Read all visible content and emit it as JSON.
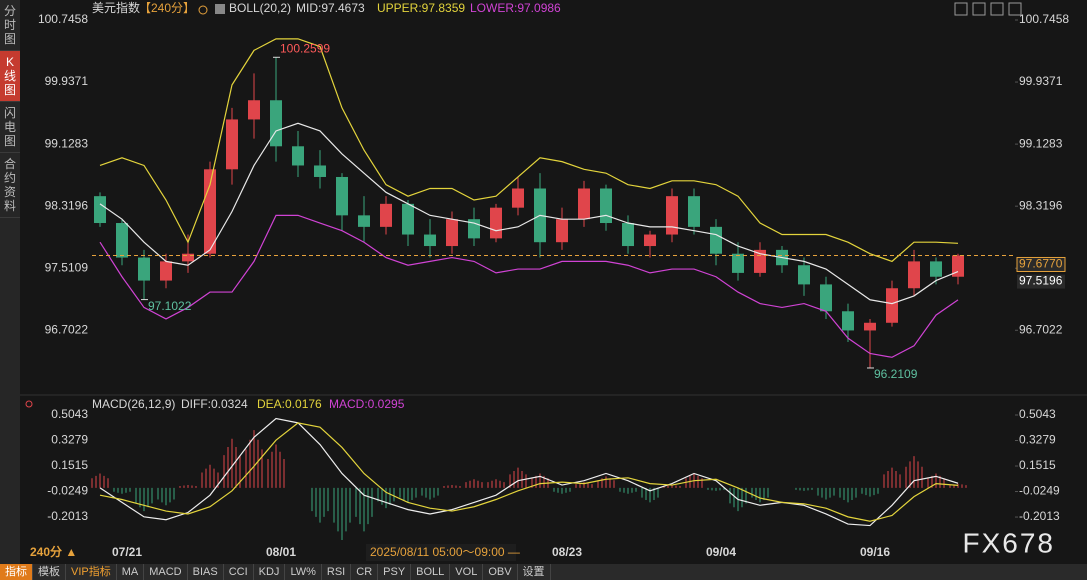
{
  "sidebar": [
    "分时图",
    "K线图",
    "闪电图",
    "合约资料"
  ],
  "header": {
    "symbol": "美元指数",
    "period": "【240分】",
    "indicator": "BOLL(20,2)",
    "mid": "MID:97.4673",
    "upper": "UPPER:97.8359",
    "lower": "LOWER:97.0986"
  },
  "macd_header": {
    "indicator": "MACD(26,12,9)",
    "diff": "DIFF:0.0324",
    "dea": "DEA:0.0176",
    "macd": "MACD:0.0295"
  },
  "period_label": "240分 ▲",
  "cursor_time": "2025/08/11 05:00～09:00 —",
  "watermark": "FX678",
  "toolbar": [
    "指标",
    "模板",
    "VIP指标",
    "MA",
    "MACD",
    "BIAS",
    "CCI",
    "KDJ",
    "LW%",
    "RSI",
    "CR",
    "PSY",
    "BOLL",
    "VOL",
    "OBV",
    "设置"
  ],
  "chart_data": [
    {
      "type": "candlestick",
      "up_color": "#e0454b",
      "down_color": "#3aa57c",
      "categories": [
        null,
        "07/21",
        null,
        null,
        null,
        null,
        null,
        null,
        "08/01",
        null,
        null,
        null,
        null,
        null,
        null,
        null,
        null,
        null,
        null,
        null,
        null,
        "08/23",
        null,
        null,
        null,
        null,
        null,
        null,
        "09/04",
        null,
        null,
        null,
        null,
        null,
        null,
        "09/16",
        null,
        null,
        null,
        null
      ],
      "open": [
        98.45,
        98.1,
        97.65,
        97.35,
        97.6,
        97.7,
        98.8,
        99.45,
        99.7,
        99.1,
        98.85,
        98.7,
        98.2,
        98.05,
        98.35,
        97.95,
        97.8,
        98.15,
        97.9,
        98.3,
        98.55,
        97.85,
        98.15,
        98.55,
        98.1,
        97.8,
        97.95,
        98.45,
        98.05,
        97.7,
        97.45,
        97.75,
        97.55,
        97.3,
        96.95,
        96.7,
        96.8,
        97.25,
        97.6,
        97.4
      ],
      "high": [
        98.5,
        98.15,
        97.75,
        97.7,
        97.95,
        98.9,
        99.6,
        100.05,
        100.2599,
        99.3,
        99.05,
        98.75,
        98.45,
        98.45,
        98.4,
        98.15,
        98.25,
        98.3,
        98.35,
        98.7,
        98.75,
        98.3,
        98.65,
        98.6,
        98.2,
        98.0,
        98.55,
        98.55,
        98.15,
        97.85,
        97.85,
        97.8,
        97.65,
        97.4,
        97.05,
        96.85,
        97.35,
        97.75,
        97.65,
        97.7
      ],
      "low": [
        98.05,
        97.55,
        97.1022,
        97.25,
        97.45,
        97.65,
        98.6,
        99.2,
        98.9,
        98.7,
        98.55,
        98.0,
        97.85,
        97.95,
        97.8,
        97.65,
        97.7,
        97.8,
        97.85,
        98.2,
        97.65,
        97.75,
        98.05,
        98.0,
        97.7,
        97.65,
        97.85,
        97.95,
        97.55,
        97.35,
        97.4,
        97.45,
        97.15,
        96.85,
        96.55,
        96.2109,
        96.75,
        97.15,
        97.3,
        97.3
      ],
      "close": [
        98.1,
        97.65,
        97.35,
        97.6,
        97.7,
        98.8,
        99.45,
        99.7,
        99.1,
        98.85,
        98.7,
        98.2,
        98.05,
        98.35,
        97.95,
        97.8,
        98.15,
        97.9,
        98.3,
        98.55,
        97.85,
        98.15,
        98.55,
        98.1,
        97.8,
        97.95,
        98.45,
        98.05,
        97.7,
        97.45,
        97.75,
        97.55,
        97.3,
        96.95,
        96.7,
        96.8,
        97.25,
        97.6,
        97.4,
        97.677
      ],
      "overlays": [
        {
          "color": "#e3d43c",
          "values": [
            98.85,
            98.95,
            98.85,
            98.4,
            97.85,
            98.6,
            99.9,
            100.35,
            100.5,
            100.5,
            100.4,
            99.6,
            99.05,
            98.6,
            98.45,
            98.55,
            98.55,
            98.4,
            98.45,
            98.7,
            98.95,
            98.9,
            98.8,
            98.75,
            98.6,
            98.55,
            98.65,
            98.65,
            98.6,
            98.45,
            98.1,
            97.95,
            97.95,
            97.95,
            97.85,
            97.7,
            97.6,
            97.85,
            97.85,
            97.8359
          ]
        },
        {
          "color": "#e8e8e8",
          "values": [
            98.35,
            98.15,
            97.85,
            97.6,
            97.55,
            97.75,
            98.25,
            98.85,
            99.3,
            99.4,
            99.3,
            99.0,
            98.75,
            98.5,
            98.35,
            98.2,
            98.15,
            98.1,
            98.0,
            98.05,
            98.2,
            98.15,
            98.15,
            98.2,
            98.1,
            98.05,
            98.05,
            98.0,
            97.95,
            97.8,
            97.7,
            97.65,
            97.6,
            97.5,
            97.3,
            97.1,
            97.05,
            97.15,
            97.35,
            97.4673
          ]
        },
        {
          "color": "#d043d4",
          "values": [
            97.85,
            97.4,
            97.0,
            96.85,
            97.0,
            97.2,
            97.2,
            97.6,
            98.2,
            98.2,
            98.1,
            98.0,
            97.85,
            97.65,
            97.55,
            97.6,
            97.65,
            97.6,
            97.45,
            97.5,
            97.5,
            97.6,
            97.6,
            97.6,
            97.55,
            97.45,
            97.5,
            97.5,
            97.4,
            97.2,
            97.05,
            97.0,
            97.05,
            96.95,
            96.6,
            96.4,
            96.35,
            96.5,
            96.9,
            97.0986
          ]
        }
      ],
      "extremes": [
        100.2599,
        97.1022,
        96.2109
      ],
      "price_lines": [
        {
          "value": 97.677,
          "label": "97.6770",
          "color": "#e6a23c"
        },
        {
          "value": 97.5196,
          "label": "97.5196",
          "color": "#ffffff"
        }
      ],
      "ylim": [
        95.95,
        100.7458
      ],
      "yticks": [
        100.7458,
        99.9371,
        99.1283,
        98.3196,
        97.5109,
        96.7022
      ]
    },
    {
      "type": "macd",
      "diff": {
        "color": "#eeeeee",
        "values": [
          0.0,
          -0.1,
          -0.2,
          -0.22,
          -0.17,
          -0.05,
          0.15,
          0.35,
          0.48,
          0.45,
          0.3,
          0.1,
          -0.05,
          -0.1,
          -0.15,
          -0.18,
          -0.15,
          -0.1,
          -0.05,
          0.05,
          0.08,
          0.02,
          0.05,
          0.1,
          0.05,
          -0.02,
          0.03,
          0.1,
          0.05,
          -0.08,
          -0.12,
          -0.1,
          -0.12,
          -0.18,
          -0.25,
          -0.26,
          -0.12,
          0.05,
          0.08,
          0.0324
        ]
      },
      "dea": {
        "color": "#e3d43c",
        "values": [
          -0.05,
          -0.08,
          -0.12,
          -0.16,
          -0.18,
          -0.13,
          -0.02,
          0.15,
          0.33,
          0.45,
          0.42,
          0.28,
          0.1,
          -0.03,
          -0.1,
          -0.14,
          -0.16,
          -0.13,
          -0.08,
          -0.02,
          0.03,
          0.04,
          0.03,
          0.06,
          0.07,
          0.03,
          0.02,
          0.05,
          0.06,
          0.0,
          -0.07,
          -0.1,
          -0.11,
          -0.14,
          -0.2,
          -0.23,
          -0.19,
          -0.06,
          0.03,
          0.0176
        ]
      },
      "hist": {
        "up_color": "#e0454b",
        "down_color": "#3aa57c",
        "values": [
          0.1,
          -0.04,
          -0.16,
          -0.12,
          0.02,
          0.16,
          0.34,
          0.4,
          0.3,
          0.0,
          -0.24,
          -0.36,
          -0.3,
          -0.14,
          -0.1,
          -0.08,
          0.02,
          0.06,
          0.06,
          0.14,
          0.1,
          -0.04,
          0.04,
          0.08,
          -0.04,
          -0.1,
          0.02,
          0.1,
          -0.02,
          -0.16,
          -0.1,
          0.0,
          -0.02,
          -0.08,
          -0.1,
          -0.06,
          0.14,
          0.22,
          0.1,
          0.0295
        ]
      },
      "ylim": [
        -0.36,
        0.608
      ],
      "yticks": [
        0.5043,
        0.3279,
        0.1515,
        -0.0249,
        -0.2013
      ]
    }
  ]
}
